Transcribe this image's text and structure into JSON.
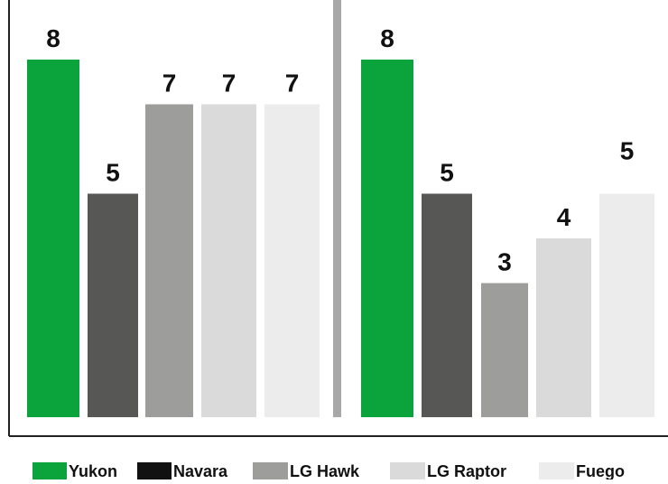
{
  "chart_data": {
    "type": "bar",
    "categories": [
      "Yukon",
      "Navara",
      "LG Hawk",
      "LG Raptor",
      "Fuego"
    ],
    "panels": [
      {
        "values": [
          8,
          5,
          7,
          7,
          7
        ]
      },
      {
        "values": [
          8,
          5,
          3,
          4,
          5
        ]
      }
    ],
    "legend": {
      "entries": [
        "Yukon",
        "Navara",
        "LG Hawk",
        "LG Raptor",
        "Fuego"
      ],
      "placement": "bottom"
    },
    "colors": {
      "Yukon": "#0aa33c",
      "Navara": "#575756",
      "LG Hawk": "#9d9d9c",
      "LG Raptor": "#dadada",
      "Fuego": "#ececec",
      "legend_navara": "#111111",
      "divider": "#a8a8a8",
      "axis": "#222222",
      "label": "#111111"
    },
    "ylim": [
      0,
      9
    ],
    "grid": false
  }
}
